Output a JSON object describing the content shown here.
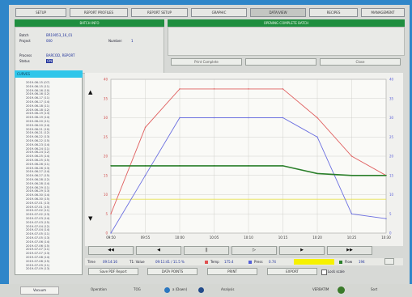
{
  "tabs": [
    "SETUP",
    "REPORT PROFILES",
    "REPORT SETUP",
    "GRAPHIC",
    "DATA/VIEW",
    "RECIPES",
    "MANAGEMENT"
  ],
  "active_tab_index": 4,
  "batch_info": {
    "title": "BATCH INFO",
    "fields": [
      {
        "label": "Batch",
        "value": "BR19053_16_01"
      },
      {
        "label": "Project",
        "value": "000"
      },
      {
        "label": "Process",
        "value": "BARCOD, REPORT"
      },
      {
        "label": "Status",
        "value": "ON"
      }
    ],
    "number_label": "Number:",
    "number_value": "1"
  },
  "right_panel": {
    "title": "OPENING COMPLETE BATCH",
    "buttons": [
      "Print Complete",
      "",
      "Close"
    ]
  },
  "list": {
    "header": "CURVES",
    "items": [
      "2019-06-15 (07)",
      "2019-06-15 (11)",
      "2019-06-16 (10)",
      "2019-06-16 (12)",
      "2019-06-17 (11)",
      "2019-06-17 (14)",
      "2019-06-18 (11)",
      "2019-06-18 (12)",
      "2019-06-19 (13)",
      "2019-06-19 (14)",
      "2019-06-20 (11)",
      "2019-06-20 (14)",
      "2019-06-21 (10)",
      "2019-06-21 (12)",
      "2019-06-22 (13)",
      "2019-06-22 (15)",
      "2019-06-23 (14)",
      "2019-06-24 (11)",
      "2019-06-24 (12)",
      "2019-06-25 (14)",
      "2019-06-25 (15)",
      "2019-06-26 (11)",
      "2019-06-26 (13)",
      "2019-06-27 (14)",
      "2019-06-27 (15)",
      "2019-06-28 (12)",
      "2019-06-28 (14)",
      "2019-06-29 (11)",
      "2019-06-29 (13)",
      "2019-06-30 (14)",
      "2019-06-30 (15)",
      "2019-07-01 (13)",
      "2019-07-01 (15)",
      "2019-07-02 (11)",
      "2019-07-02 (13)",
      "2019-07-03 (14)",
      "2019-07-03 (15)",
      "2019-07-04 (12)",
      "2019-07-04 (14)",
      "2019-07-05 (11)",
      "2019-07-05 (13)",
      "2019-07-06 (14)",
      "2019-07-06 (15)",
      "2019-07-07 (11)",
      "2019-07-07 (13)",
      "2019-07-08 (14)",
      "2019-07-08 (15)",
      "2019-07-09 (11)",
      "2019-07-09 (13)"
    ]
  },
  "chart_data": {
    "type": "line",
    "x": [
      "09:50",
      "09:55",
      "10:00",
      "10:05",
      "10:10",
      "10:15",
      "10:20",
      "10:25",
      "10:30"
    ],
    "series": [
      {
        "name": "Temp",
        "values": [
          20,
          110,
          150,
          150,
          150,
          150,
          120,
          80,
          60
        ]
      },
      {
        "name": "Press",
        "values": [
          0,
          60,
          120,
          120,
          120,
          120,
          100,
          20,
          15
        ]
      },
      {
        "name": "Flow",
        "values": [
          70,
          70,
          70,
          70,
          70,
          70,
          62,
          60,
          60
        ]
      }
    ],
    "y_ticks": [
      "40",
      "35",
      "30",
      "25",
      "20",
      "15",
      "10",
      "5",
      "0"
    ],
    "colors": {
      "Temp": "#e06060",
      "Press": "#6b6fe0",
      "Flow": "#2a7f2a"
    },
    "grid": true
  },
  "transport": {
    "buttons": [
      "◀◀",
      "◀",
      "||",
      "▷",
      "▶",
      "▶▶"
    ]
  },
  "status": {
    "time_label": "Time",
    "time_value": "09:14:16",
    "t1_label": "T1: Value",
    "t1_value": "09:11:41 / 11.5 %",
    "temp_label": "Temp",
    "temp_value": "175.4",
    "press_label": "Press",
    "press_value": "0.74",
    "flow_label": "Flow",
    "flow_value": "194"
  },
  "actions": {
    "buttons": [
      "Save PDF Report",
      "DATA POINTS",
      "PRINT",
      "EXPORT"
    ],
    "checkbox_label": "Lock scale"
  },
  "footer": {
    "logo": "Vacuum",
    "items": [
      "Operation",
      "TOG",
      "a (Down)",
      "Analysis"
    ],
    "right_items": [
      "VERBATIM",
      "Sort"
    ]
  }
}
